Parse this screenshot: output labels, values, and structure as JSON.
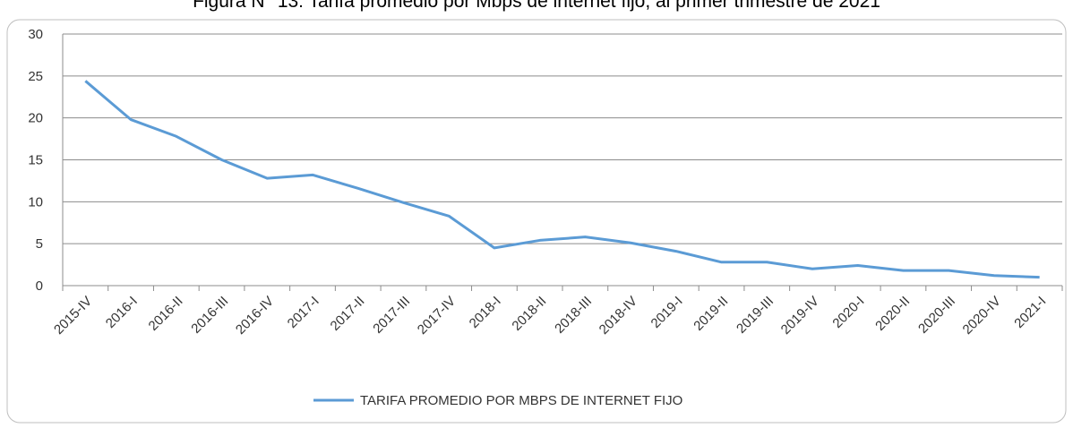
{
  "chart_data": {
    "type": "line",
    "title": "Figura N° 13: Tarifa promedio por Mbps de internet fijo, al primer trimestre de 2021",
    "categories": [
      "2015-IV",
      "2016-I",
      "2016-II",
      "2016-III",
      "2016-IV",
      "2017-I",
      "2017-II",
      "2017-III",
      "2017-IV",
      "2018-I",
      "2018-II",
      "2018-III",
      "2018-IV",
      "2019-I",
      "2019-II",
      "2019-III",
      "2019-IV",
      "2020-I",
      "2020-II",
      "2020-III",
      "2020-IV",
      "2021-I"
    ],
    "series": [
      {
        "name": "TARIFA PROMEDIO POR MBPS DE INTERNET FIJO",
        "color": "#5b9bd5",
        "values": [
          24.4,
          19.8,
          17.8,
          15.0,
          12.8,
          13.2,
          11.6,
          9.9,
          8.3,
          4.5,
          5.4,
          5.8,
          5.1,
          4.1,
          2.8,
          2.8,
          2.0,
          2.4,
          1.8,
          1.8,
          1.2,
          1.0
        ]
      }
    ],
    "ylim": [
      0,
      30
    ],
    "yticks": [
      0,
      5,
      10,
      15,
      20,
      25,
      30
    ],
    "grid": true,
    "legend": "bottom"
  }
}
